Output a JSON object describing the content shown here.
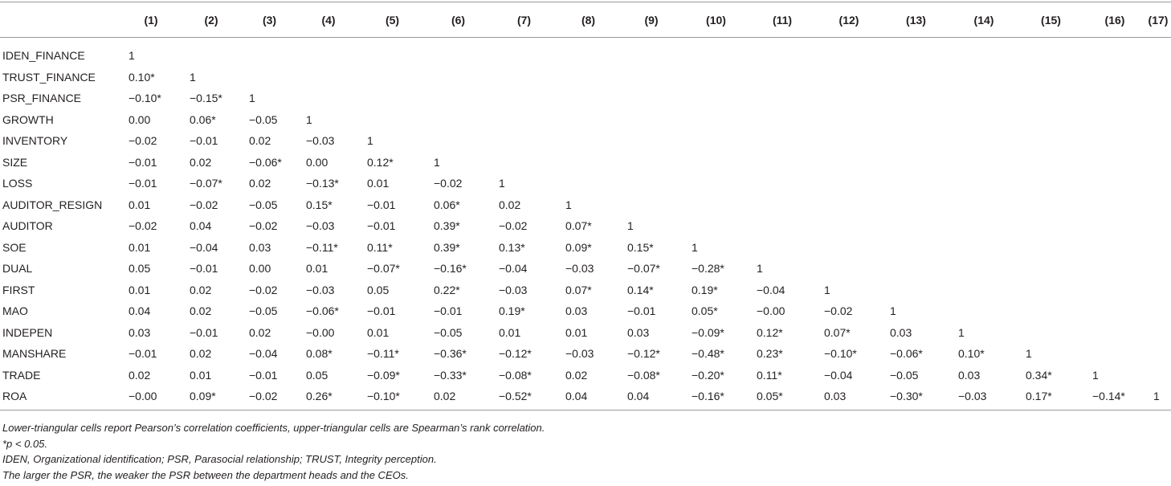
{
  "table": {
    "columns": [
      "",
      "(1)",
      "(2)",
      "(3)",
      "(4)",
      "(5)",
      "(6)",
      "(7)",
      "(8)",
      "(9)",
      "(10)",
      "(11)",
      "(12)",
      "(13)",
      "(14)",
      "(15)",
      "(16)",
      "(17)"
    ],
    "rows": [
      {
        "label": "IDEN_FINANCE",
        "values": [
          "1"
        ]
      },
      {
        "label": "TRUST_FINANCE",
        "values": [
          "0.10*",
          "1"
        ]
      },
      {
        "label": "PSR_FINANCE",
        "values": [
          "−0.10*",
          "−0.15*",
          "1"
        ]
      },
      {
        "label": "GROWTH",
        "values": [
          "0.00",
          "0.06*",
          "−0.05",
          "1"
        ]
      },
      {
        "label": "INVENTORY",
        "values": [
          "−0.02",
          "−0.01",
          "0.02",
          "−0.03",
          "1"
        ]
      },
      {
        "label": "SIZE",
        "values": [
          "−0.01",
          "0.02",
          "−0.06*",
          "0.00",
          "0.12*",
          "1"
        ]
      },
      {
        "label": "LOSS",
        "values": [
          "−0.01",
          "−0.07*",
          "0.02",
          "−0.13*",
          "0.01",
          "−0.02",
          "1"
        ]
      },
      {
        "label": "AUDITOR_RESIGN",
        "values": [
          "0.01",
          "−0.02",
          "−0.05",
          "0.15*",
          "−0.01",
          "0.06*",
          "0.02",
          "1"
        ]
      },
      {
        "label": "AUDITOR",
        "values": [
          "−0.02",
          "0.04",
          "−0.02",
          "−0.03",
          "−0.01",
          "0.39*",
          "−0.02",
          "0.07*",
          "1"
        ]
      },
      {
        "label": "SOE",
        "values": [
          "0.01",
          "−0.04",
          "0.03",
          "−0.11*",
          "0.11*",
          "0.39*",
          "0.13*",
          "0.09*",
          "0.15*",
          "1"
        ]
      },
      {
        "label": "DUAL",
        "values": [
          "0.05",
          "−0.01",
          "0.00",
          "0.01",
          "−0.07*",
          "−0.16*",
          "−0.04",
          "−0.03",
          "−0.07*",
          "−0.28*",
          "1"
        ]
      },
      {
        "label": "FIRST",
        "values": [
          "0.01",
          "0.02",
          "−0.02",
          "−0.03",
          "0.05",
          "0.22*",
          "−0.03",
          "0.07*",
          "0.14*",
          "0.19*",
          "−0.04",
          "1"
        ]
      },
      {
        "label": "MAO",
        "values": [
          "0.04",
          "0.02",
          "−0.05",
          "−0.06*",
          "−0.01",
          "−0.01",
          "0.19*",
          "0.03",
          "−0.01",
          "0.05*",
          "−0.00",
          "−0.02",
          "1"
        ]
      },
      {
        "label": "INDEPEN",
        "values": [
          "0.03",
          "−0.01",
          "0.02",
          "−0.00",
          "0.01",
          "−0.05",
          "0.01",
          "0.01",
          "0.03",
          "−0.09*",
          "0.12*",
          "0.07*",
          "0.03",
          "1"
        ]
      },
      {
        "label": "MANSHARE",
        "values": [
          "−0.01",
          "0.02",
          "−0.04",
          "0.08*",
          "−0.11*",
          "−0.36*",
          "−0.12*",
          "−0.03",
          "−0.12*",
          "−0.48*",
          "0.23*",
          "−0.10*",
          "−0.06*",
          "0.10*",
          "1"
        ]
      },
      {
        "label": "TRADE",
        "values": [
          "0.02",
          "0.01",
          "−0.01",
          "0.05",
          "−0.09*",
          "−0.33*",
          "−0.08*",
          "0.02",
          "−0.08*",
          "−0.20*",
          "0.11*",
          "−0.04",
          "−0.05",
          "0.03",
          "0.34*",
          "1"
        ]
      },
      {
        "label": "ROA",
        "values": [
          "−0.00",
          "0.09*",
          "−0.02",
          "0.26*",
          "−0.10*",
          "0.02",
          "−0.52*",
          "0.04",
          "0.04",
          "−0.16*",
          "0.05*",
          "0.03",
          "−0.30*",
          "−0.03",
          "0.17*",
          "−0.14*",
          "1"
        ]
      }
    ]
  },
  "notes": [
    "Lower-triangular cells report Pearson’s correlation coefficients, upper-triangular cells are Spearman’s rank correlation.",
    "*p < 0.05.",
    "IDEN, Organizational identification; PSR, Parasocial relationship; TRUST, Integrity perception.",
    "The larger the PSR, the weaker the PSR between the department heads and the CEOs."
  ]
}
